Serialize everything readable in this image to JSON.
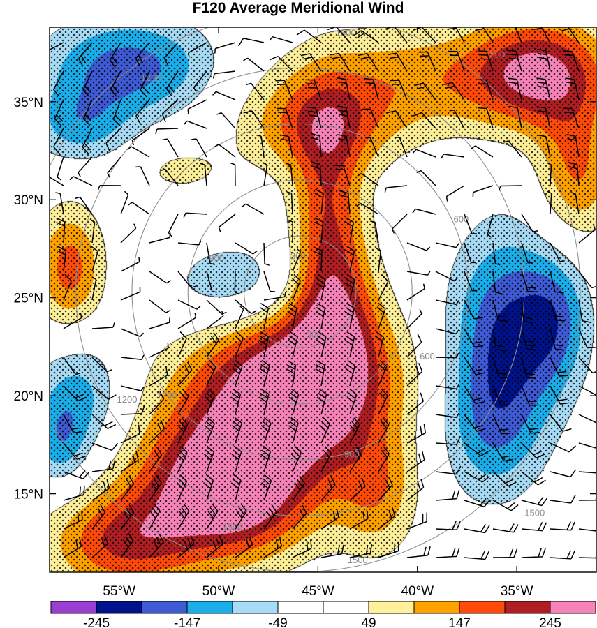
{
  "chart_data": {
    "type": "heatmap",
    "title": "F120 Average Meridional Wind",
    "xlabel": "",
    "ylabel": "",
    "xlim": [
      -58.5,
      -31
    ],
    "ylim": [
      11,
      38.8
    ],
    "x_ticks": [
      {
        "value": -55,
        "label": "55°W"
      },
      {
        "value": -50,
        "label": "50°W"
      },
      {
        "value": -45,
        "label": "45°W"
      },
      {
        "value": -40,
        "label": "40°W"
      },
      {
        "value": -35,
        "label": "35°W"
      }
    ],
    "y_ticks": [
      {
        "value": 35,
        "label": "35°N"
      },
      {
        "value": 30,
        "label": "30°N"
      },
      {
        "value": 25,
        "label": "25°N"
      },
      {
        "value": 20,
        "label": "20°N"
      },
      {
        "value": 15,
        "label": "15°N"
      }
    ],
    "colorbar": {
      "levels": [
        -294,
        -245,
        -196,
        -147,
        -98,
        -49,
        0,
        49,
        98,
        147,
        196,
        245,
        294
      ],
      "colors": [
        "#9b3fd4",
        "#01128a",
        "#3e5ad4",
        "#1aaeea",
        "#a8dcf6",
        "#ffffff",
        "#ffffff",
        "#fff09a",
        "#ffa200",
        "#ff4a0a",
        "#b01e22",
        "#f783b8"
      ],
      "labels": [
        {
          "value": -245,
          "label": "-245"
        },
        {
          "value": -147,
          "label": "-147"
        },
        {
          "value": -49,
          "label": "-49"
        },
        {
          "value": 49,
          "label": "49"
        },
        {
          "value": 147,
          "label": "147"
        },
        {
          "value": 245,
          "label": "245"
        }
      ]
    },
    "range_rings": {
      "center": [
        -45.9,
        25.3
      ],
      "rings": [
        {
          "radius_km": 300,
          "label": "300"
        },
        {
          "radius_km": 600,
          "label": "600"
        },
        {
          "radius_km": 900,
          "label": "900"
        },
        {
          "radius_km": 1200,
          "label": "1200"
        },
        {
          "radius_km": 1500,
          "label": "1500"
        }
      ],
      "label_positions": [
        {
          "label": "300",
          "lon": -46.0,
          "lat": 27.1
        },
        {
          "label": "300",
          "lon": -45.2,
          "lat": 23.1
        },
        {
          "label": "600",
          "lon": -37.8,
          "lat": 29.0
        },
        {
          "label": "600",
          "lon": -39.5,
          "lat": 22.0
        },
        {
          "label": "900",
          "lon": -50.1,
          "lat": 27.0
        },
        {
          "label": "900",
          "lon": -43.3,
          "lat": 17.0
        },
        {
          "label": "1200",
          "lon": -53.4,
          "lat": 36.2
        },
        {
          "label": "1200",
          "lon": -54.6,
          "lat": 19.8
        },
        {
          "label": "1200",
          "lon": -52.6,
          "lat": 20.0
        },
        {
          "label": "1500",
          "lon": -43.6,
          "lat": 38.5
        },
        {
          "label": "1500",
          "lon": -36.1,
          "lat": 37.4
        },
        {
          "label": "1500",
          "lon": -49.3,
          "lat": 13.3
        },
        {
          "label": "1500",
          "lon": -43.0,
          "lat": 11.6
        },
        {
          "label": "1500",
          "lon": -34.1,
          "lat": 14.0
        }
      ]
    },
    "field": [
      {
        "lon": -45.5,
        "lat": 21.0,
        "v": 220,
        "slon": 3.2,
        "slat": 2.6
      },
      {
        "lon": -47.8,
        "lat": 18.5,
        "v": 190,
        "slon": 3.8,
        "slat": 3.4
      },
      {
        "lon": -50.0,
        "lat": 15.0,
        "v": 240,
        "slon": 3.0,
        "slat": 2.4
      },
      {
        "lon": -49.0,
        "lat": 16.0,
        "v": 130,
        "slon": 1.1,
        "slat": 1.4
      },
      {
        "lon": -44.2,
        "lat": 24.5,
        "v": 170,
        "slon": 1.5,
        "slat": 3.0
      },
      {
        "lon": -44.5,
        "lat": 30.0,
        "v": 150,
        "slon": 1.2,
        "slat": 3.5
      },
      {
        "lon": -45.0,
        "lat": 33.8,
        "v": 150,
        "slon": 2.7,
        "slat": 1.8
      },
      {
        "lon": -40.0,
        "lat": 36.2,
        "v": 120,
        "slon": 4.5,
        "slat": 2.0
      },
      {
        "lon": -33.8,
        "lat": 36.5,
        "v": 230,
        "slon": 2.4,
        "slat": 2.0
      },
      {
        "lon": -32.0,
        "lat": 31.5,
        "v": 150,
        "slon": 1.4,
        "slat": 2.6
      },
      {
        "lon": -55.0,
        "lat": 12.5,
        "v": 180,
        "slon": 2.6,
        "slat": 1.8
      },
      {
        "lon": -42.0,
        "lat": 15.0,
        "v": 110,
        "slon": 1.4,
        "slat": 2.2
      },
      {
        "lon": -57.5,
        "lat": 26.5,
        "v": 170,
        "slon": 1.2,
        "slat": 2.2
      },
      {
        "lon": -52.0,
        "lat": 31.5,
        "v": 60,
        "slon": 1.8,
        "slat": 1.0
      },
      {
        "lon": -49.0,
        "lat": 25.5,
        "v": -110,
        "slon": 2.6,
        "slat": 1.7
      },
      {
        "lon": -54.5,
        "lat": 36.8,
        "v": -170,
        "slon": 3.0,
        "slat": 1.8
      },
      {
        "lon": -57.0,
        "lat": 33.8,
        "v": -110,
        "slon": 1.8,
        "slat": 1.4
      },
      {
        "lon": -35.5,
        "lat": 23.0,
        "v": -200,
        "slon": 2.0,
        "slat": 3.8
      },
      {
        "lon": -33.0,
        "lat": 24.0,
        "v": -110,
        "slon": 1.2,
        "slat": 2.4
      },
      {
        "lon": -36.5,
        "lat": 18.0,
        "v": -90,
        "slon": 1.8,
        "slat": 2.6
      },
      {
        "lon": -57.0,
        "lat": 20.0,
        "v": -120,
        "slon": 1.6,
        "slat": 2.2
      },
      {
        "lon": -58.0,
        "lat": 17.5,
        "v": -100,
        "slon": 1.0,
        "slat": 1.6
      }
    ],
    "stipple": "dots on |v| >= 49",
    "barbs": "wind barbs overlaid"
  }
}
